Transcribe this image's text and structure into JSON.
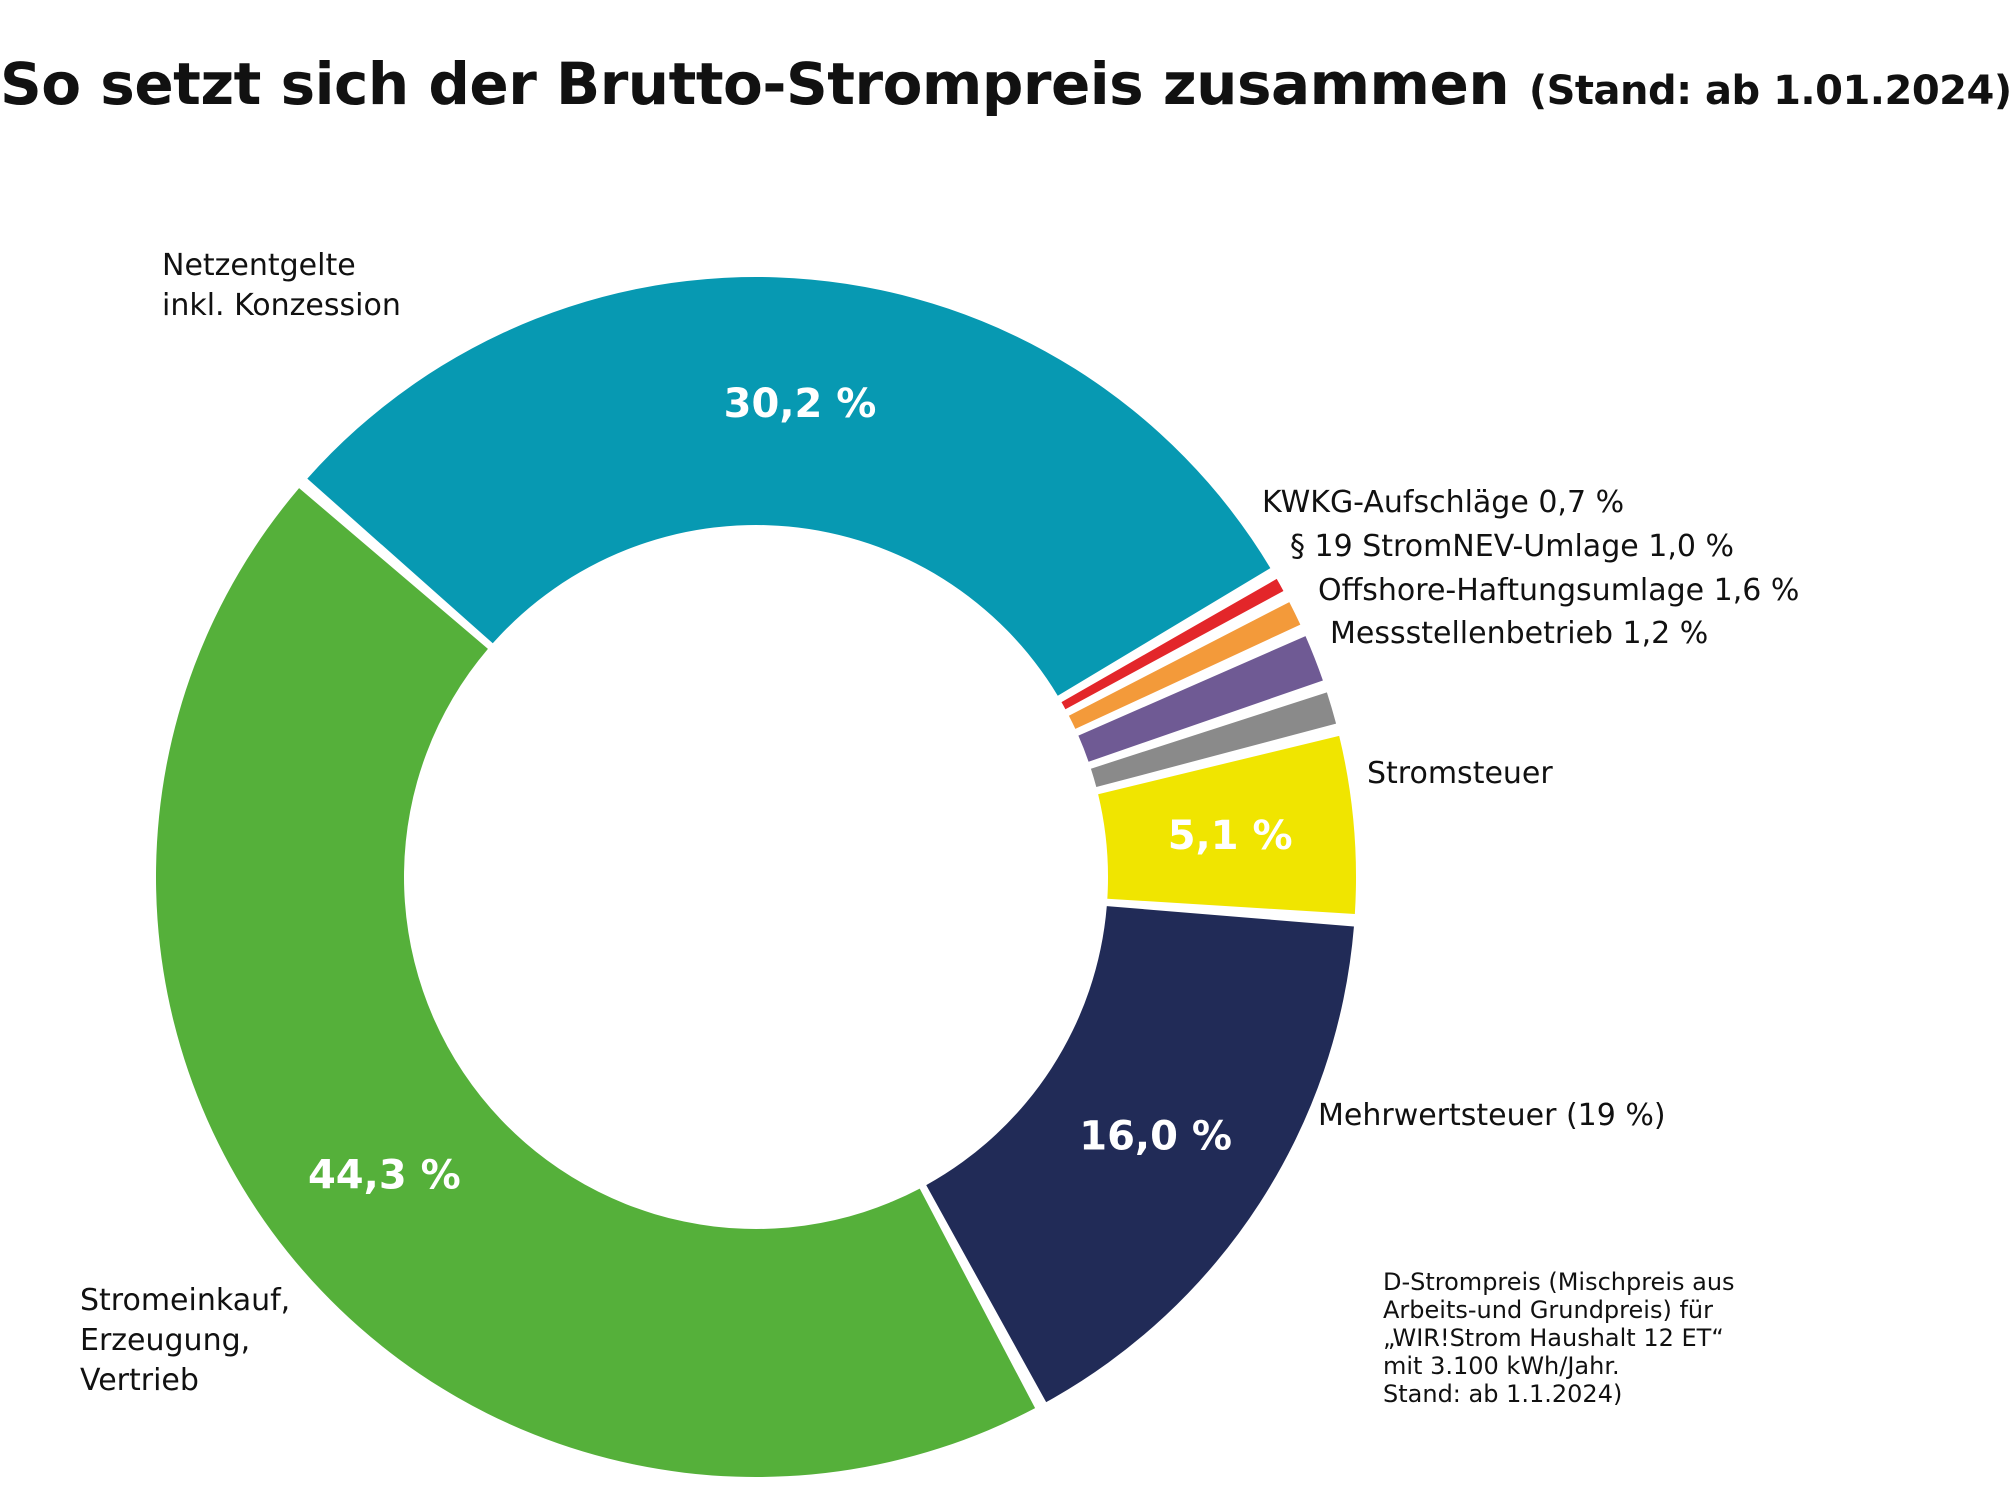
{
  "title": {
    "main": "So setzt sich der Brutto-Strompreis zusammen",
    "sub": "(Stand: ab 1.01.2024)"
  },
  "chart_data": {
    "type": "pie",
    "donut": true,
    "slices": [
      {
        "name": "Netzentgelte inkl. Konzession",
        "label_lines": [
          "Netzentgelte",
          "inkl. Konzession"
        ],
        "value": 30.2,
        "value_text": "30,2 %",
        "color": "#0799b2"
      },
      {
        "name": "KWKG-Aufschläge",
        "label_lines": [
          "KWKG-Aufschläge 0,7 %"
        ],
        "value": 0.7,
        "value_text": "",
        "color": "#e3262a"
      },
      {
        "name": "§ 19 StromNEV-Umlage",
        "label_lines": [
          "§ 19 StromNEV-Umlage 1,0 %"
        ],
        "value": 1.0,
        "value_text": "",
        "color": "#f39a3a"
      },
      {
        "name": "Offshore-Haftungsumlage",
        "label_lines": [
          "Offshore-Haftungsumlage 1,6 %"
        ],
        "value": 1.6,
        "value_text": "",
        "color": "#6f5a94"
      },
      {
        "name": "Messstellenbetrieb",
        "label_lines": [
          "Messstellenbetrieb 1,2 %"
        ],
        "value": 1.2,
        "value_text": "",
        "color": "#8a8a8a"
      },
      {
        "name": "Stromsteuer",
        "label_lines": [
          "Stromsteuer"
        ],
        "value": 5.1,
        "value_text": "5,1 %",
        "color": "#f0e500"
      },
      {
        "name": "Mehrwertsteuer (19 %)",
        "label_lines": [
          "Mehrwertsteuer (19 %)"
        ],
        "value": 16.0,
        "value_text": "16,0 %",
        "color": "#212b57"
      },
      {
        "name": "Stromeinkauf, Erzeugung, Vertrieb",
        "label_lines": [
          "Stromeinkauf,",
          "Erzeugung,",
          "Vertrieb"
        ],
        "value": 44.3,
        "value_text": "44,3 %",
        "color": "#55b03a"
      }
    ]
  },
  "footnote": [
    "D-Strompreis (Mischpreis aus",
    "Arbeits-und Grundpreis) für",
    "„WIR!Strom Haushalt 12 ET“",
    "mit 3.100 kWh/Jahr.",
    "Stand: ab 1.1.2024)"
  ]
}
